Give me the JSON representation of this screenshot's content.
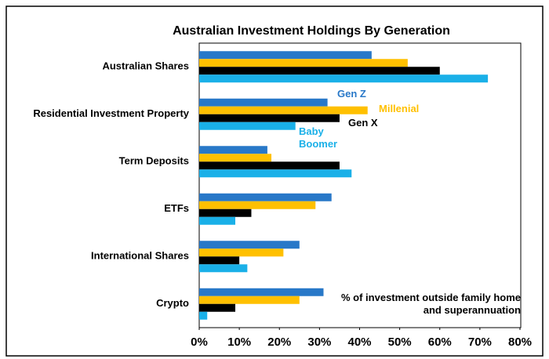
{
  "chart_data": {
    "type": "hbar",
    "title": "Australian Investment Holdings By Generation",
    "categories": [
      "Australian Shares",
      "Residential Investment Property",
      "Term Deposits",
      "ETFs",
      "International Shares",
      "Crypto"
    ],
    "series": [
      {
        "name": "Gen Z",
        "color": "#2878c8",
        "values": [
          43,
          32,
          17,
          33,
          25,
          31
        ]
      },
      {
        "name": "Millenial",
        "color": "#ffc000",
        "values": [
          52,
          42,
          18,
          29,
          21,
          25
        ]
      },
      {
        "name": "Gen X",
        "color": "#000000",
        "values": [
          60,
          35,
          35,
          13,
          10,
          9
        ]
      },
      {
        "name": "Baby Boomer",
        "color": "#1ab0e8",
        "values": [
          72,
          24,
          38,
          9,
          12,
          2
        ]
      }
    ],
    "annotation": "% of investment outside family home and superannuation",
    "xlim": [
      0,
      80
    ],
    "xticks": [
      {
        "value": 0,
        "label": "0%"
      },
      {
        "value": 10,
        "label": "10%"
      },
      {
        "value": 20,
        "label": "20%"
      },
      {
        "value": 30,
        "label": "30%"
      },
      {
        "value": 40,
        "label": "40%"
      },
      {
        "value": 50,
        "label": "50%"
      },
      {
        "value": 60,
        "label": "60%"
      },
      {
        "value": 70,
        "label": "70%"
      },
      {
        "value": 80,
        "label": "80%"
      }
    ],
    "grid": false
  }
}
